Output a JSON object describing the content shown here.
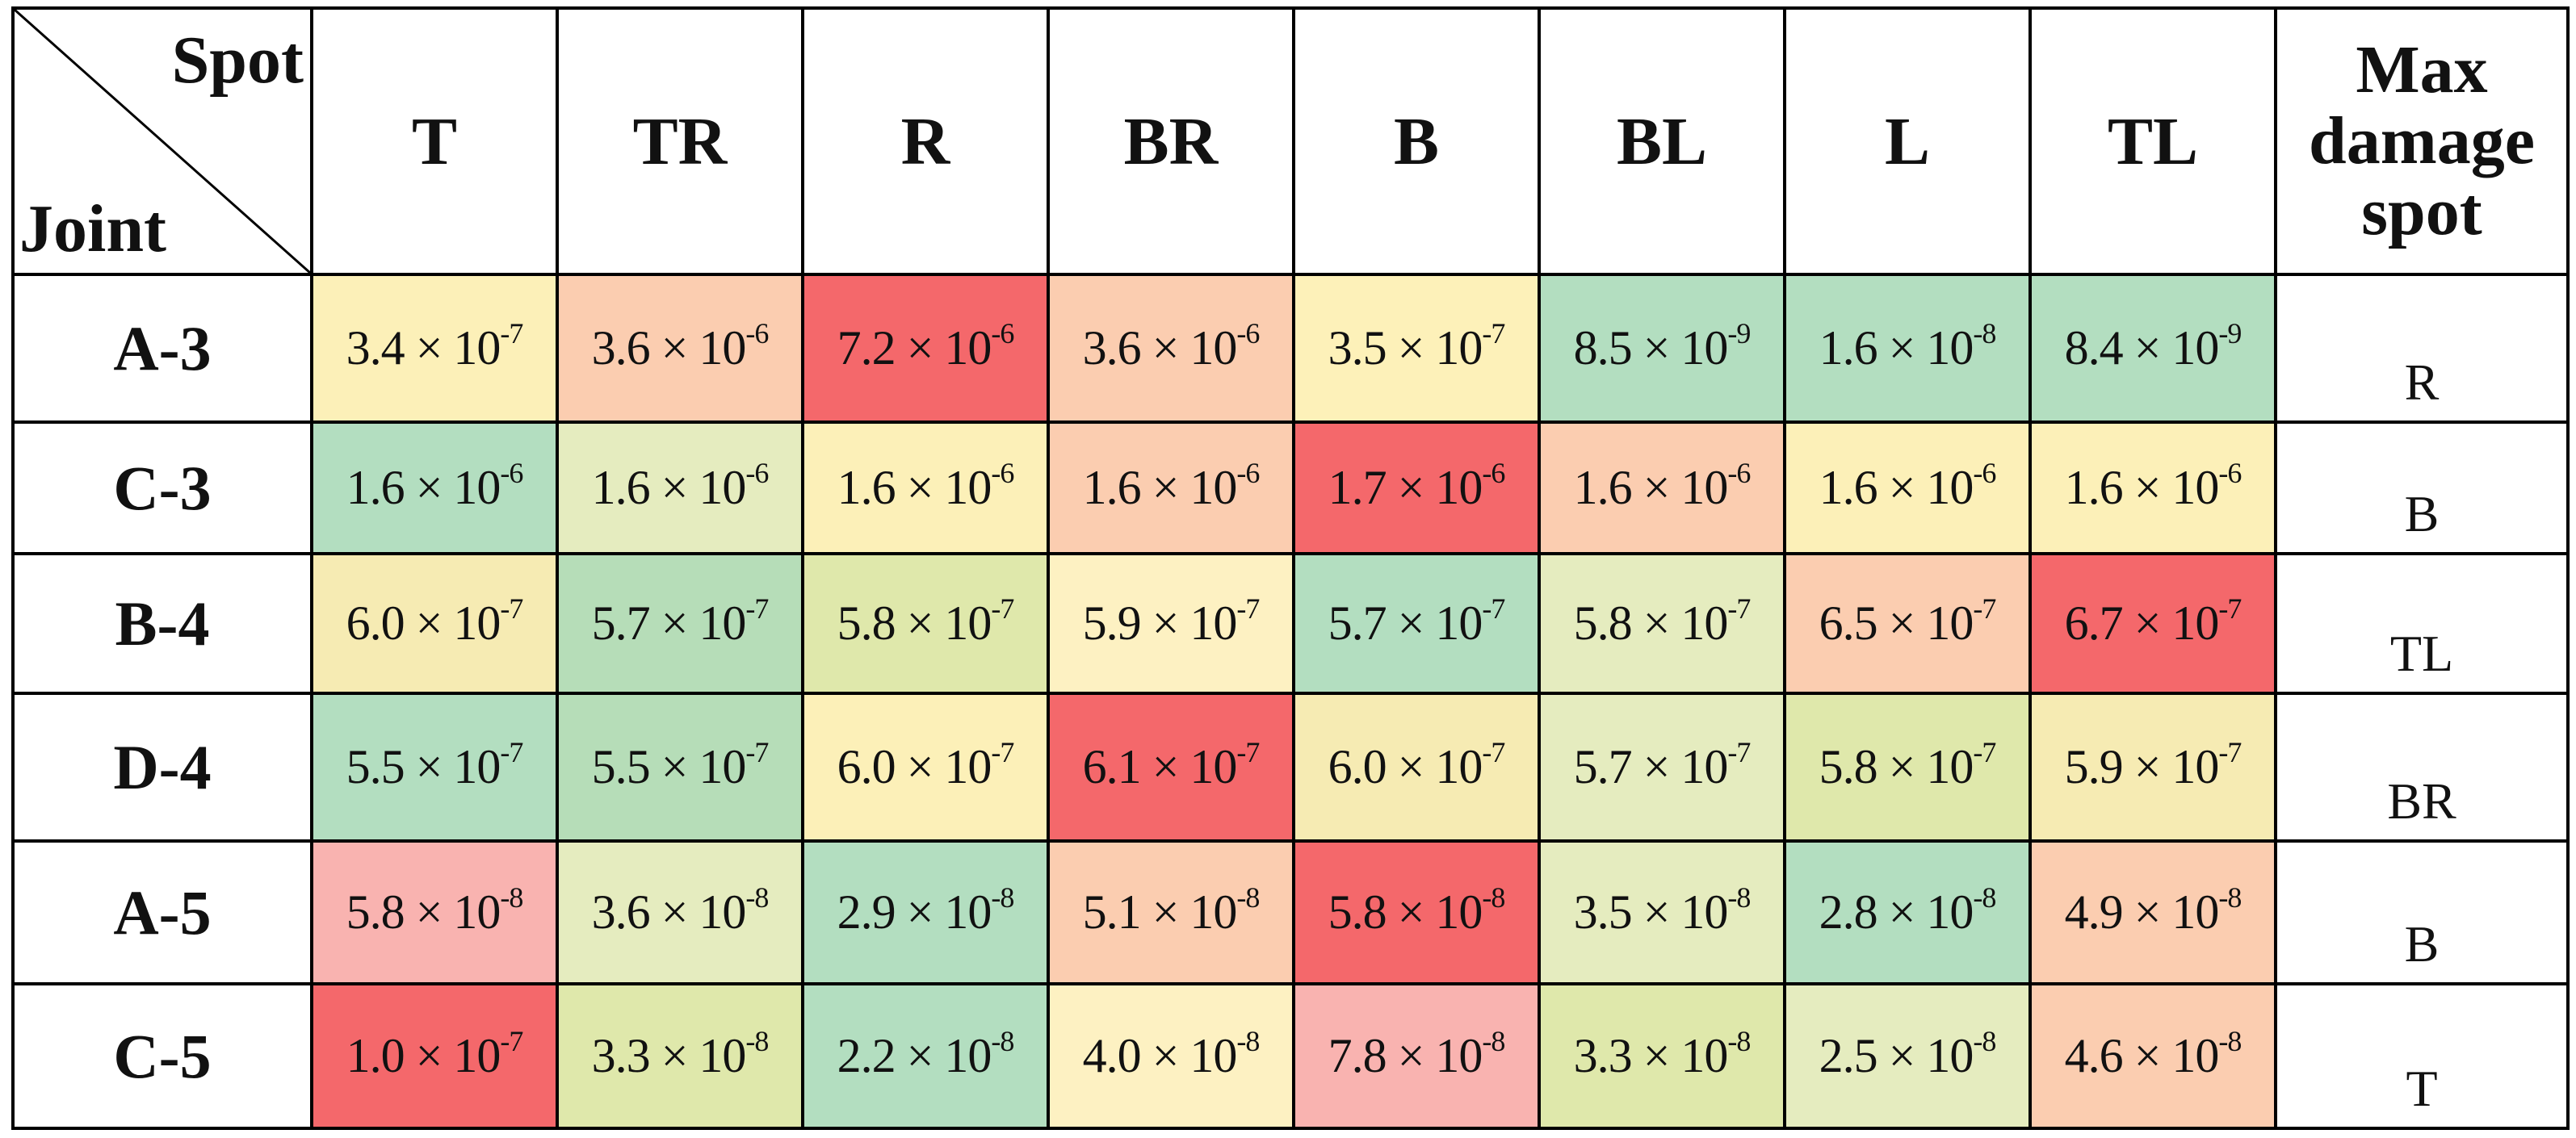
{
  "table": {
    "corner": {
      "column_label": "Spot",
      "row_label": "Joint"
    },
    "columns": [
      "T",
      "TR",
      "R",
      "BR",
      "B",
      "BL",
      "L",
      "TL"
    ],
    "summary_column": "Max damage spot",
    "rows": [
      {
        "joint": "A-3",
        "max_spot": "R",
        "cells": [
          {
            "mantissa": "3.4 × 10",
            "exponent": "-7",
            "color": "#fcf0b8"
          },
          {
            "mantissa": "3.6 × 10",
            "exponent": "-6",
            "color": "#fbcdb0"
          },
          {
            "mantissa": "7.2 × 10",
            "exponent": "-6",
            "color": "#f4686b"
          },
          {
            "mantissa": "3.6 × 10",
            "exponent": "-6",
            "color": "#fbcdb0"
          },
          {
            "mantissa": "3.5 × 10",
            "exponent": "-7",
            "color": "#fdf1b9"
          },
          {
            "mantissa": "8.5 × 10",
            "exponent": "-9",
            "color": "#b3dec0"
          },
          {
            "mantissa": "1.6 × 10",
            "exponent": "-8",
            "color": "#b3dec0"
          },
          {
            "mantissa": "8.4 × 10",
            "exponent": "-9",
            "color": "#b3dec0"
          }
        ]
      },
      {
        "joint": "C-3",
        "max_spot": "B",
        "cells": [
          {
            "mantissa": "1.6 × 10",
            "exponent": "-6",
            "color": "#b3dec0"
          },
          {
            "mantissa": "1.6 × 10",
            "exponent": "-6",
            "color": "#e5ecbf"
          },
          {
            "mantissa": "1.6 × 10",
            "exponent": "-6",
            "color": "#fcf0b8"
          },
          {
            "mantissa": "1.6 × 10",
            "exponent": "-6",
            "color": "#fbcdb0"
          },
          {
            "mantissa": "1.7 × 10",
            "exponent": "-6",
            "color": "#f4686b"
          },
          {
            "mantissa": "1.6 × 10",
            "exponent": "-6",
            "color": "#fbcdb0"
          },
          {
            "mantissa": "1.6 × 10",
            "exponent": "-6",
            "color": "#fcf0b8"
          },
          {
            "mantissa": "1.6 × 10",
            "exponent": "-6",
            "color": "#fcf0b8"
          }
        ]
      },
      {
        "joint": "B-4",
        "max_spot": "TL",
        "cells": [
          {
            "mantissa": "6.0 × 10",
            "exponent": "-7",
            "color": "#f6ebb3"
          },
          {
            "mantissa": "5.7 × 10",
            "exponent": "-7",
            "color": "#b6ddb8"
          },
          {
            "mantissa": "5.8 × 10",
            "exponent": "-7",
            "color": "#dfe8ab"
          },
          {
            "mantissa": "5.9 × 10",
            "exponent": "-7",
            "color": "#fdf1c2"
          },
          {
            "mantissa": "5.7 × 10",
            "exponent": "-7",
            "color": "#b3dec0"
          },
          {
            "mantissa": "5.8 × 10",
            "exponent": "-7",
            "color": "#e5ecbf"
          },
          {
            "mantissa": "6.5 × 10",
            "exponent": "-7",
            "color": "#fbcdb0"
          },
          {
            "mantissa": "6.7 × 10",
            "exponent": "-7",
            "color": "#f4686b"
          }
        ]
      },
      {
        "joint": "D-4",
        "max_spot": "BR",
        "cells": [
          {
            "mantissa": "5.5 × 10",
            "exponent": "-7",
            "color": "#b3dec0"
          },
          {
            "mantissa": "5.5 × 10",
            "exponent": "-7",
            "color": "#b6ddb8"
          },
          {
            "mantissa": "6.0 × 10",
            "exponent": "-7",
            "color": "#fcf0b8"
          },
          {
            "mantissa": "6.1 × 10",
            "exponent": "-7",
            "color": "#f4686b"
          },
          {
            "mantissa": "6.0 × 10",
            "exponent": "-7",
            "color": "#f6ebb3"
          },
          {
            "mantissa": "5.7 × 10",
            "exponent": "-7",
            "color": "#e5ecbf"
          },
          {
            "mantissa": "5.8 × 10",
            "exponent": "-7",
            "color": "#dfe8ab"
          },
          {
            "mantissa": "5.9 × 10",
            "exponent": "-7",
            "color": "#f6ebb3"
          }
        ]
      },
      {
        "joint": "A-5",
        "max_spot": "B",
        "cells": [
          {
            "mantissa": "5.8 × 10",
            "exponent": "-8",
            "color": "#f9b3b0"
          },
          {
            "mantissa": "3.6 × 10",
            "exponent": "-8",
            "color": "#e5ecbf"
          },
          {
            "mantissa": "2.9 × 10",
            "exponent": "-8",
            "color": "#b3dec0"
          },
          {
            "mantissa": "5.1 × 10",
            "exponent": "-8",
            "color": "#fbcdb0"
          },
          {
            "mantissa": "5.8 × 10",
            "exponent": "-8",
            "color": "#f4686b"
          },
          {
            "mantissa": "3.5 × 10",
            "exponent": "-8",
            "color": "#e5ecbf"
          },
          {
            "mantissa": "2.8 × 10",
            "exponent": "-8",
            "color": "#b3dec0"
          },
          {
            "mantissa": "4.9 × 10",
            "exponent": "-8",
            "color": "#fbcdb0"
          }
        ]
      },
      {
        "joint": "C-5",
        "max_spot": "T",
        "cells": [
          {
            "mantissa": "1.0 × 10",
            "exponent": "-7",
            "color": "#f4686b"
          },
          {
            "mantissa": "3.3 × 10",
            "exponent": "-8",
            "color": "#dfe8ab"
          },
          {
            "mantissa": "2.2 × 10",
            "exponent": "-8",
            "color": "#b3dec0"
          },
          {
            "mantissa": "4.0 × 10",
            "exponent": "-8",
            "color": "#fdf1c2"
          },
          {
            "mantissa": "7.8 × 10",
            "exponent": "-8",
            "color": "#f9b3b0"
          },
          {
            "mantissa": "3.3 × 10",
            "exponent": "-8",
            "color": "#dfe8ab"
          },
          {
            "mantissa": "2.5 × 10",
            "exponent": "-8",
            "color": "#e5ecbf"
          },
          {
            "mantissa": "4.6 × 10",
            "exponent": "-8",
            "color": "#fbcdb0"
          }
        ]
      }
    ]
  }
}
